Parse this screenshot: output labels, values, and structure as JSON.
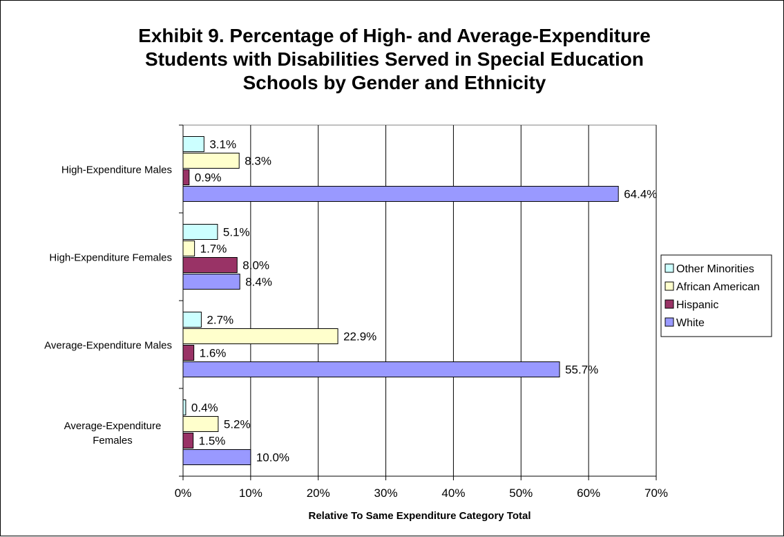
{
  "chart_data": {
    "type": "bar",
    "orientation": "horizontal",
    "title_lines": [
      "Exhibit 9. Percentage of High- and Average-Expenditure",
      "Students with Disabilities Served in Special Education",
      "Schools by Gender and Ethnicity"
    ],
    "xlabel": "Relative To Same Expenditure Category Total",
    "ylabel": "",
    "xlim": [
      0,
      70
    ],
    "x_ticks": [
      "0%",
      "10%",
      "20%",
      "30%",
      "40%",
      "50%",
      "60%",
      "70%"
    ],
    "grid": "vertical",
    "legend_position": "right",
    "categories": [
      [
        "High-Expenditure Males"
      ],
      [
        "High-Expenditure Females"
      ],
      [
        "Average-Expenditure Males"
      ],
      [
        "Average-Expenditure",
        "Females"
      ]
    ],
    "series": [
      {
        "name": "Other Minorities",
        "color": "#ccffff",
        "values": [
          3.1,
          5.1,
          2.7,
          0.4
        ],
        "labels": [
          "3.1%",
          "5.1%",
          "2.7%",
          "0.4%"
        ]
      },
      {
        "name": "African American",
        "color": "#ffffcc",
        "values": [
          8.3,
          1.7,
          22.9,
          5.2
        ],
        "labels": [
          "8.3%",
          "1.7%",
          "22.9%",
          "5.2%"
        ]
      },
      {
        "name": "Hispanic",
        "color": "#993366",
        "values": [
          0.9,
          8.0,
          1.6,
          1.5
        ],
        "labels": [
          "0.9%",
          "8.0%",
          "1.6%",
          "1.5%"
        ]
      },
      {
        "name": "White",
        "color": "#9999ff",
        "values": [
          64.4,
          8.4,
          55.7,
          10.0
        ],
        "labels": [
          "64.4%",
          "8.4%",
          "55.7%",
          "10.0%"
        ]
      }
    ]
  }
}
